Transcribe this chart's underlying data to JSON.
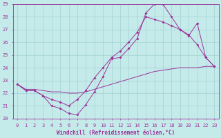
{
  "xlabel": "Windchill (Refroidissement éolien,°C)",
  "xlim_min": -0.5,
  "xlim_max": 23.5,
  "ylim_min": 20,
  "ylim_max": 29,
  "xticks": [
    0,
    1,
    2,
    3,
    4,
    5,
    6,
    7,
    8,
    9,
    10,
    11,
    12,
    13,
    14,
    15,
    16,
    17,
    18,
    19,
    20,
    21,
    22,
    23
  ],
  "yticks": [
    20,
    21,
    22,
    23,
    24,
    25,
    26,
    27,
    28,
    29
  ],
  "bg_color": "#c5eaea",
  "line_color": "#993399",
  "grid_color": "#99cccc",
  "line1_y": [
    22.7,
    22.2,
    22.2,
    21.8,
    21.0,
    20.8,
    20.4,
    20.3,
    21.1,
    22.1,
    23.3,
    24.7,
    24.8,
    25.5,
    26.3,
    28.3,
    29.0,
    29.0,
    28.0,
    27.0,
    26.5,
    27.5,
    24.8,
    24.1
  ],
  "line2_y": [
    22.7,
    22.2,
    22.2,
    21.8,
    21.5,
    21.3,
    21.0,
    21.5,
    22.2,
    23.2,
    24.0,
    24.8,
    25.3,
    26.0,
    26.8,
    28.0,
    27.8,
    27.6,
    27.3,
    27.0,
    26.6,
    25.8,
    24.8,
    24.1
  ],
  "line3_y": [
    22.7,
    22.3,
    22.3,
    22.2,
    22.1,
    22.1,
    22.0,
    22.0,
    22.1,
    22.3,
    22.5,
    22.7,
    22.9,
    23.1,
    23.3,
    23.5,
    23.7,
    23.8,
    23.9,
    24.0,
    24.0,
    24.0,
    24.1,
    24.1
  ],
  "marker_style": "D",
  "marker_size": 2.0,
  "line_width": 0.7,
  "tick_fontsize": 5.0,
  "xlabel_fontsize": 5.5
}
